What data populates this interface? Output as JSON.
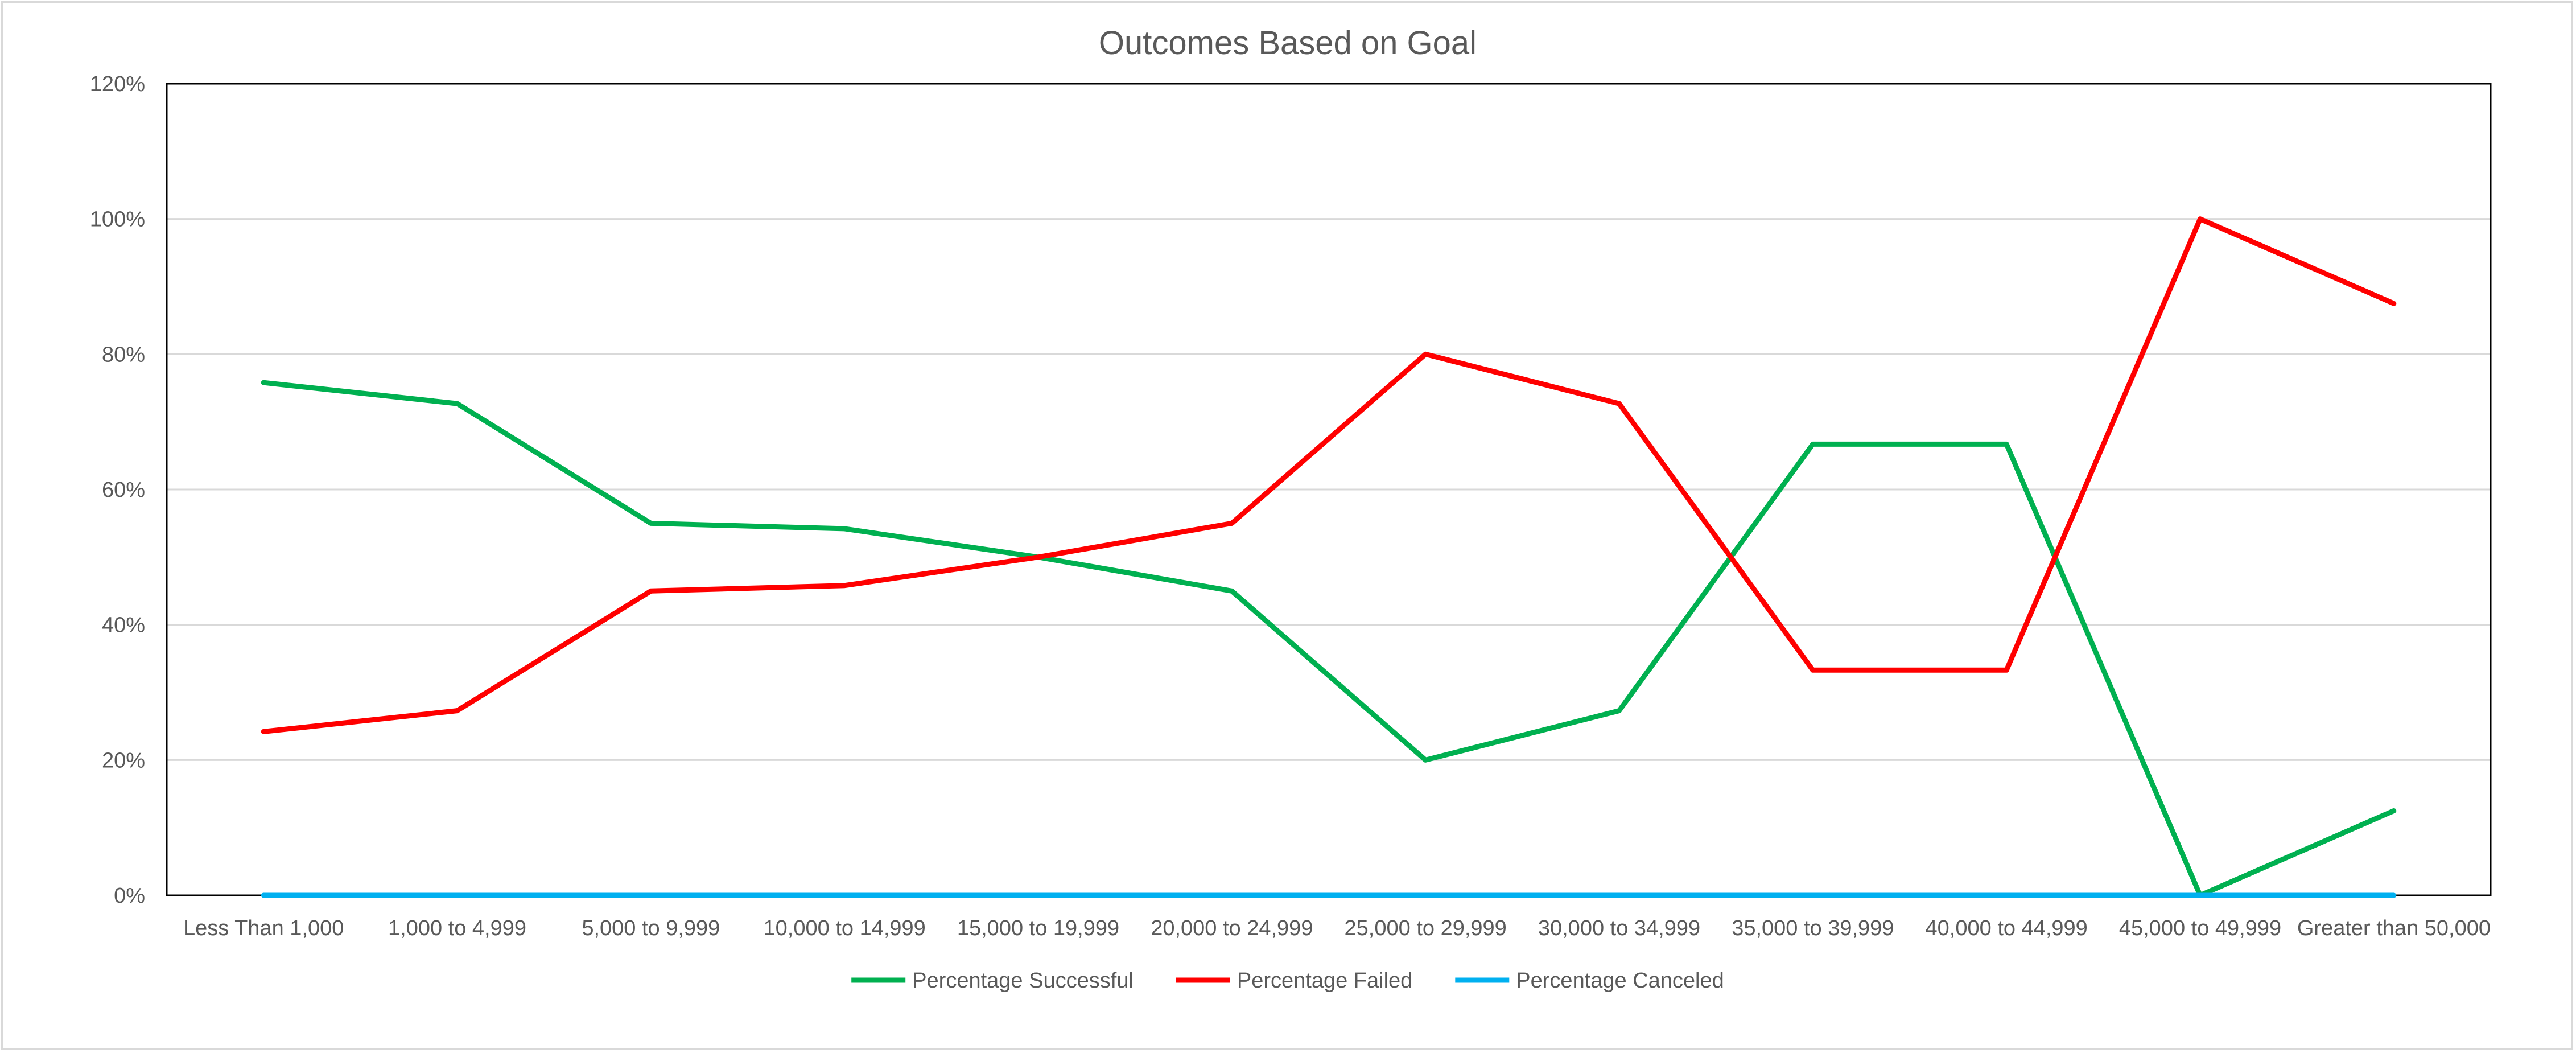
{
  "chart_data": {
    "type": "line",
    "title": "Outcomes Based on Goal",
    "xlabel": "",
    "ylabel": "",
    "categories": [
      "Less Than 1,000",
      "1,000 to 4,999",
      "5,000 to 9,999",
      "10,000 to 14,999",
      "15,000 to 19,999",
      "20,000 to 24,999",
      "25,000 to 29,999",
      "30,000 to 34,999",
      "35,000 to 39,999",
      "40,000 to 44,999",
      "45,000 to 49,999",
      "Greater than 50,000"
    ],
    "ylim": [
      0,
      120
    ],
    "yticks": [
      "0%",
      "20%",
      "40%",
      "60%",
      "80%",
      "100%",
      "120%"
    ],
    "ytick_values": [
      0,
      20,
      40,
      60,
      80,
      100,
      120
    ],
    "grid": true,
    "legend_position": "bottom",
    "series": [
      {
        "name": "Percentage Successful",
        "color": "#00B050",
        "values": [
          75.8,
          72.7,
          55,
          54.2,
          50,
          45,
          20,
          27.3,
          66.7,
          66.7,
          0,
          12.5
        ]
      },
      {
        "name": "Percentage Failed",
        "color": "#FF0000",
        "values": [
          24.2,
          27.3,
          45,
          45.8,
          50,
          55,
          80,
          72.7,
          33.3,
          33.3,
          100,
          87.5
        ]
      },
      {
        "name": "Percentage Canceled",
        "color": "#00B0F0",
        "values": [
          0,
          0,
          0,
          0,
          0,
          0,
          0,
          0,
          0,
          0,
          0,
          0
        ]
      }
    ]
  }
}
